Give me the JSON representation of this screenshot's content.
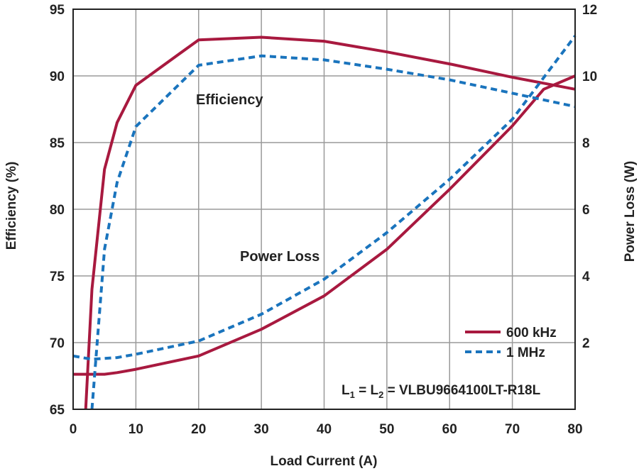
{
  "chart_data": {
    "type": "line",
    "xlabel": "Load Current (A)",
    "ylabel_left": "Efficiency (%)",
    "ylabel_right": "Power Loss (W)",
    "xlim": [
      0,
      80
    ],
    "ylim_left": [
      65,
      95
    ],
    "ylim_right": [
      0,
      12
    ],
    "x_ticks": [
      0,
      10,
      20,
      30,
      40,
      50,
      60,
      70,
      80
    ],
    "y_left_ticks": [
      65,
      70,
      75,
      80,
      85,
      90,
      95
    ],
    "y_right_ticks": [
      2,
      4,
      6,
      8,
      10,
      12
    ],
    "grid": true,
    "legend_position": "bottom-right",
    "annotations": {
      "efficiency": "Efficiency",
      "power_loss": "Power Loss",
      "inductor_prefix": "L",
      "inductor_sub1": "1",
      "inductor_mid": " = L",
      "inductor_sub2": "2",
      "inductor_suffix": " = VLBU9664100LT-R18L"
    },
    "series": [
      {
        "name": "600 kHz",
        "style": "solid",
        "color": "#a8193f",
        "efficiency": {
          "x": [
            2,
            3,
            5,
            7,
            10,
            20,
            30,
            40,
            50,
            60,
            70,
            80
          ],
          "y": [
            65,
            74,
            83,
            86.5,
            89.3,
            92.7,
            92.9,
            92.6,
            91.8,
            90.9,
            89.9,
            89
          ]
        },
        "power_loss": {
          "x": [
            0,
            2,
            5,
            7,
            10,
            20,
            30,
            40,
            50,
            60,
            70,
            75,
            80
          ],
          "y": [
            1.05,
            1.05,
            1.05,
            1.1,
            1.2,
            1.6,
            2.4,
            3.4,
            4.8,
            6.6,
            8.5,
            9.6,
            10
          ]
        }
      },
      {
        "name": "1 MHz",
        "style": "dashed",
        "color": "#1a74bd",
        "efficiency": {
          "x": [
            3,
            5,
            7,
            10,
            20,
            30,
            40,
            50,
            60,
            70,
            80
          ],
          "y": [
            65,
            77,
            82,
            86.2,
            90.8,
            91.5,
            91.2,
            90.5,
            89.7,
            88.7,
            87.7
          ]
        },
        "power_loss": {
          "x": [
            0,
            3,
            7,
            10,
            20,
            30,
            40,
            50,
            60,
            70,
            80
          ],
          "y": [
            1.6,
            1.5,
            1.55,
            1.65,
            2.05,
            2.85,
            3.9,
            5.3,
            6.9,
            8.7,
            11.2
          ]
        }
      }
    ]
  }
}
